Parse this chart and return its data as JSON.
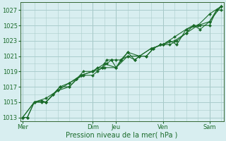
{
  "title": "Pression niveau de la mer( hPa )",
  "bg_color": "#d8eef0",
  "grid_color": "#aacccc",
  "line_color": "#1a6b2a",
  "tick_color": "#1a6b2a",
  "spine_color": "#336633",
  "ylim": [
    1012.5,
    1028.0
  ],
  "yticks": [
    1013,
    1015,
    1017,
    1019,
    1021,
    1023,
    1025,
    1027
  ],
  "xtick_labels": [
    "Mer",
    "Dim",
    "Jeu",
    "Ven",
    "Sam"
  ],
  "xtick_positions": [
    0,
    3.0,
    4.0,
    6.0,
    8.0
  ],
  "xlim": [
    -0.1,
    8.6
  ],
  "series": [
    [
      0.0,
      1013.0
    ],
    [
      0.2,
      1013.0
    ],
    [
      0.5,
      1015.0
    ],
    [
      0.8,
      1015.0
    ],
    [
      1.0,
      1015.0
    ],
    [
      1.3,
      1016.0
    ],
    [
      1.6,
      1017.0
    ],
    [
      2.0,
      1017.5
    ],
    [
      2.3,
      1018.0
    ],
    [
      2.6,
      1018.5
    ],
    [
      3.0,
      1018.5
    ],
    [
      3.2,
      1019.0
    ],
    [
      3.4,
      1019.5
    ],
    [
      3.6,
      1020.0
    ],
    [
      3.8,
      1020.5
    ],
    [
      4.0,
      1019.5
    ],
    [
      4.2,
      1020.5
    ],
    [
      4.5,
      1021.0
    ],
    [
      4.8,
      1020.5
    ],
    [
      5.0,
      1021.0
    ],
    [
      5.3,
      1021.0
    ],
    [
      5.6,
      1022.0
    ],
    [
      5.9,
      1022.5
    ],
    [
      6.0,
      1022.5
    ],
    [
      6.3,
      1022.5
    ],
    [
      6.6,
      1023.0
    ],
    [
      7.0,
      1024.0
    ],
    [
      7.3,
      1025.0
    ],
    [
      7.6,
      1025.0
    ],
    [
      8.0,
      1025.0
    ],
    [
      8.3,
      1027.0
    ],
    [
      8.5,
      1027.5
    ]
  ],
  "series2": [
    [
      0.0,
      1013.0
    ],
    [
      0.2,
      1013.0
    ],
    [
      0.5,
      1015.0
    ],
    [
      0.8,
      1015.2
    ],
    [
      1.0,
      1015.0
    ],
    [
      1.3,
      1016.0
    ],
    [
      1.6,
      1017.0
    ],
    [
      2.0,
      1017.0
    ],
    [
      2.3,
      1018.0
    ],
    [
      2.6,
      1019.0
    ],
    [
      3.0,
      1019.0
    ],
    [
      3.2,
      1019.5
    ],
    [
      3.4,
      1019.5
    ],
    [
      3.6,
      1020.5
    ],
    [
      3.8,
      1020.5
    ],
    [
      4.0,
      1020.5
    ],
    [
      4.2,
      1020.5
    ],
    [
      4.5,
      1021.5
    ],
    [
      4.8,
      1020.5
    ],
    [
      5.0,
      1021.0
    ],
    [
      5.3,
      1021.0
    ],
    [
      5.6,
      1022.0
    ],
    [
      5.9,
      1022.5
    ],
    [
      6.0,
      1022.5
    ],
    [
      6.3,
      1023.0
    ],
    [
      6.6,
      1022.5
    ],
    [
      7.0,
      1024.5
    ],
    [
      7.3,
      1025.0
    ],
    [
      7.6,
      1024.5
    ],
    [
      8.0,
      1025.5
    ],
    [
      8.3,
      1027.0
    ],
    [
      8.5,
      1027.0
    ]
  ],
  "series3": [
    [
      0.0,
      1013.0
    ],
    [
      0.5,
      1015.0
    ],
    [
      1.0,
      1015.5
    ],
    [
      1.5,
      1016.5
    ],
    [
      2.0,
      1017.5
    ],
    [
      2.5,
      1018.5
    ],
    [
      3.0,
      1019.0
    ],
    [
      3.5,
      1019.5
    ],
    [
      4.0,
      1019.5
    ],
    [
      4.5,
      1021.5
    ],
    [
      5.0,
      1021.0
    ],
    [
      5.5,
      1022.0
    ],
    [
      6.0,
      1022.5
    ],
    [
      6.5,
      1023.5
    ],
    [
      7.0,
      1024.5
    ],
    [
      7.5,
      1025.0
    ],
    [
      8.0,
      1026.5
    ],
    [
      8.5,
      1027.5
    ]
  ],
  "series4": [
    [
      0.0,
      1013.0
    ],
    [
      0.5,
      1015.0
    ],
    [
      1.0,
      1015.0
    ],
    [
      1.5,
      1016.5
    ],
    [
      2.0,
      1017.0
    ],
    [
      2.5,
      1018.5
    ],
    [
      3.0,
      1019.0
    ],
    [
      3.5,
      1020.0
    ],
    [
      4.0,
      1019.5
    ],
    [
      4.5,
      1021.0
    ],
    [
      5.0,
      1021.0
    ],
    [
      5.5,
      1022.0
    ],
    [
      6.0,
      1022.5
    ],
    [
      6.5,
      1023.0
    ],
    [
      7.0,
      1024.0
    ],
    [
      7.5,
      1025.0
    ],
    [
      8.0,
      1025.5
    ],
    [
      8.5,
      1027.5
    ]
  ],
  "ylabel_fontsize": 6.0,
  "xlabel_fontsize": 7.0,
  "tick_fontsize": 6.0
}
